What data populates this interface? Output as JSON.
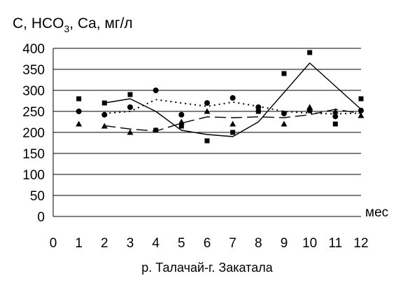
{
  "chart_data": {
    "type": "scatter",
    "title_main": "C, HCO",
    "title_sub": "3",
    "title_rest": ", Ca, мг/л",
    "xlabel": "р. Талачай-г. Закатала",
    "x_unit": "мес",
    "xlim": [
      0,
      12
    ],
    "ylim": [
      0,
      400
    ],
    "x_ticks": [
      "0",
      "1",
      "2",
      "3",
      "4",
      "5",
      "6",
      "7",
      "8",
      "9",
      "10",
      "11",
      "12"
    ],
    "y_ticks": [
      "0",
      "50",
      "100",
      "150",
      "200",
      "250",
      "300",
      "350",
      "400"
    ],
    "grid": "horizontal",
    "series": [
      {
        "marker": "square",
        "points": [
          [
            1,
            280
          ],
          [
            2,
            270
          ],
          [
            3,
            290
          ],
          [
            4,
            205
          ],
          [
            5,
            215
          ],
          [
            6,
            180
          ],
          [
            7,
            200
          ],
          [
            8,
            250
          ],
          [
            9,
            340
          ],
          [
            10,
            390
          ],
          [
            11,
            220
          ],
          [
            12,
            280
          ]
        ],
        "trend": [
          [
            2,
            270
          ],
          [
            3,
            280
          ],
          [
            4,
            250
          ],
          [
            5,
            205
          ],
          [
            6,
            195
          ],
          [
            7,
            190
          ],
          [
            8,
            225
          ],
          [
            9,
            295
          ],
          [
            10,
            365
          ],
          [
            11,
            310
          ],
          [
            12,
            255
          ]
        ],
        "trend_style": "solid"
      },
      {
        "marker": "circle",
        "points": [
          [
            1,
            250
          ],
          [
            2,
            242
          ],
          [
            3,
            260
          ],
          [
            4,
            300
          ],
          [
            5,
            242
          ],
          [
            6,
            270
          ],
          [
            7,
            282
          ],
          [
            8,
            260
          ],
          [
            9,
            245
          ],
          [
            10,
            252
          ],
          [
            11,
            238
          ],
          [
            12,
            252
          ]
        ],
        "trend": [
          [
            2,
            245
          ],
          [
            3,
            250
          ],
          [
            4,
            278
          ],
          [
            5,
            270
          ],
          [
            6,
            262
          ],
          [
            7,
            272
          ],
          [
            8,
            262
          ],
          [
            9,
            250
          ],
          [
            10,
            246
          ],
          [
            11,
            244
          ],
          [
            12,
            246
          ]
        ],
        "trend_style": "dotted"
      },
      {
        "marker": "triangle",
        "points": [
          [
            1,
            220
          ],
          [
            2,
            215
          ],
          [
            3,
            200
          ],
          [
            4,
            205
          ],
          [
            5,
            225
          ],
          [
            6,
            250
          ],
          [
            7,
            220
          ],
          [
            8,
            255
          ],
          [
            9,
            220
          ],
          [
            10,
            260
          ],
          [
            11,
            250
          ],
          [
            12,
            240
          ]
        ],
        "trend": [
          [
            2,
            216
          ],
          [
            3,
            208
          ],
          [
            4,
            203
          ],
          [
            5,
            222
          ],
          [
            6,
            237
          ],
          [
            7,
            235
          ],
          [
            8,
            237
          ],
          [
            9,
            235
          ],
          [
            10,
            242
          ],
          [
            11,
            255
          ],
          [
            12,
            245
          ]
        ],
        "trend_style": "dashed"
      }
    ]
  }
}
